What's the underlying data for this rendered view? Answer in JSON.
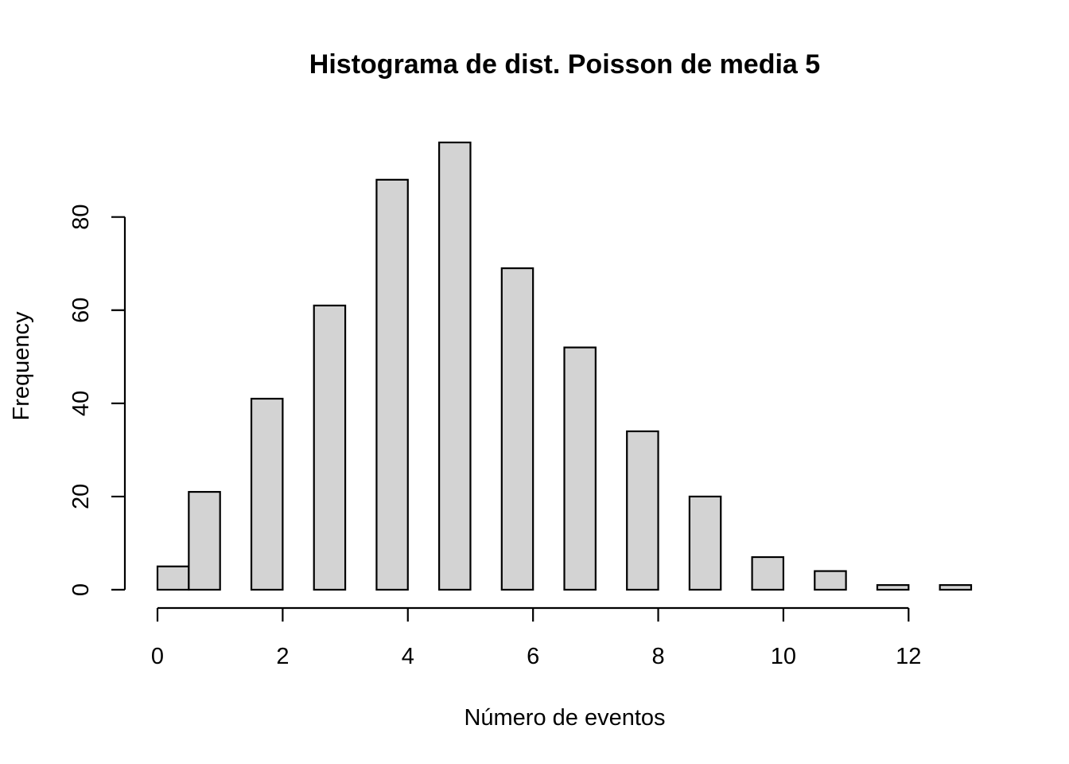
{
  "chart_data": {
    "type": "bar",
    "title": "Histograma de dist. Poisson de media 5",
    "xlabel": "Número de eventos",
    "ylabel": "Frequency",
    "bins": [
      {
        "start": 0.0,
        "end": 0.5,
        "value": 5
      },
      {
        "start": 0.5,
        "end": 1.0,
        "value": 21
      },
      {
        "start": 1.5,
        "end": 2.0,
        "value": 41
      },
      {
        "start": 2.5,
        "end": 3.0,
        "value": 61
      },
      {
        "start": 3.5,
        "end": 4.0,
        "value": 88
      },
      {
        "start": 4.5,
        "end": 5.0,
        "value": 96
      },
      {
        "start": 5.5,
        "end": 6.0,
        "value": 69
      },
      {
        "start": 6.5,
        "end": 7.0,
        "value": 52
      },
      {
        "start": 7.5,
        "end": 8.0,
        "value": 34
      },
      {
        "start": 8.5,
        "end": 9.0,
        "value": 20
      },
      {
        "start": 9.5,
        "end": 10.0,
        "value": 7
      },
      {
        "start": 10.5,
        "end": 11.0,
        "value": 4
      },
      {
        "start": 11.5,
        "end": 12.0,
        "value": 1
      },
      {
        "start": 12.5,
        "end": 13.0,
        "value": 1
      }
    ],
    "xticks": [
      0,
      2,
      4,
      6,
      8,
      10,
      12
    ],
    "yticks": [
      0,
      20,
      40,
      60,
      80
    ],
    "xlim": [
      0,
      13
    ],
    "ylim": [
      0,
      96
    ],
    "grid": false,
    "colors": {
      "bar_fill": "#d3d3d3",
      "bar_stroke": "#000000",
      "axis": "#000000",
      "background": "#ffffff"
    }
  }
}
